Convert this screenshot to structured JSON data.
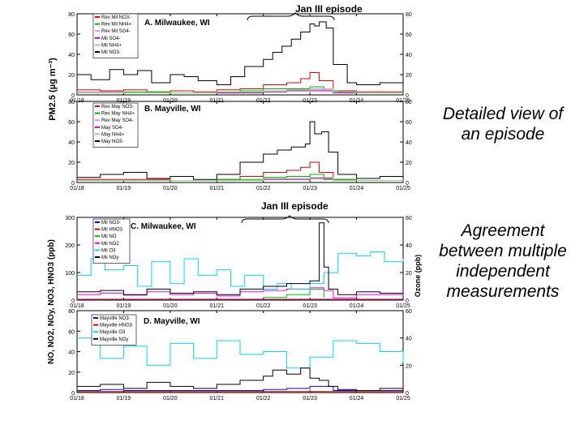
{
  "callouts": {
    "episode": [
      "Detailed view of",
      "an episode"
    ],
    "agreement": [
      "Agreement",
      "between multiple",
      "independent",
      "measurements"
    ]
  },
  "episode_labels": {
    "top": "Jan III episode",
    "bottom": "Jan III episode"
  },
  "axes": {
    "left_top": "PM2.5 (µg m⁻³)",
    "left_bottom": "NO, NO2, NOy, NO3, HNO3 (ppb)",
    "right_bottom": "Ozone (ppb)"
  },
  "chart_data": [
    {
      "id": "A",
      "type": "line",
      "title": "A. Milwaukee, WI",
      "ylim": [
        0,
        80
      ],
      "yticks": [
        0,
        20,
        40,
        60,
        80
      ],
      "xlim": [
        18,
        25
      ],
      "categories": [
        "01/18",
        "01/19",
        "01/20",
        "01/21",
        "01/22",
        "01/23",
        "01/24",
        "01/25"
      ],
      "series": [
        {
          "name": "Rev Mil NO3-",
          "color": "#e00000",
          "x": [
            18,
            18.5,
            19,
            19.5,
            20,
            20.5,
            21,
            21.5,
            22,
            22.5,
            22.8,
            23,
            23.2,
            23.5,
            24,
            24.5,
            25
          ],
          "y": [
            5,
            4,
            5,
            3,
            4,
            3,
            5,
            6,
            10,
            12,
            16,
            22,
            14,
            4,
            3,
            3,
            3
          ]
        },
        {
          "name": "Rev Mil NH4+",
          "color": "#00b000",
          "x": [
            18,
            19,
            20,
            21,
            21.5,
            22,
            22.5,
            23,
            23.3,
            23.6,
            24,
            25
          ],
          "y": [
            3,
            3,
            2,
            3,
            4,
            6,
            6,
            8,
            4,
            3,
            2,
            3
          ]
        },
        {
          "name": "Rev Mil SO4-",
          "color": "#ff80ff",
          "x": [
            18,
            19,
            20,
            21,
            22,
            22.5,
            23,
            23.5,
            24,
            25
          ],
          "y": [
            3,
            2,
            2,
            2,
            4,
            5,
            5,
            3,
            2,
            2
          ]
        },
        {
          "name": "Mil SO4-",
          "color": "#c000c0",
          "x": [
            18,
            19,
            20,
            21,
            22,
            22.5,
            23,
            23.5,
            24,
            25
          ],
          "y": [
            2,
            2,
            2,
            2,
            3,
            4,
            4,
            2,
            2,
            2
          ]
        },
        {
          "name": "Mil NH4+",
          "color": "#80e080",
          "x": [
            18,
            19,
            20,
            21,
            22,
            22.5,
            23,
            23.5,
            24,
            25
          ],
          "y": [
            2,
            2,
            2,
            3,
            4,
            5,
            6,
            3,
            2,
            2
          ]
        },
        {
          "name": "Mil NO3-",
          "color": "#000000",
          "x": [
            18,
            18.3,
            18.7,
            19,
            19.3,
            19.6,
            20,
            20.3,
            20.6,
            21,
            21.3,
            21.6,
            22,
            22.2,
            22.4,
            22.6,
            22.8,
            23,
            23.1,
            23.2,
            23.35,
            23.5,
            23.8,
            24,
            24.5,
            25
          ],
          "y": [
            20,
            15,
            25,
            20,
            24,
            12,
            20,
            18,
            14,
            10,
            18,
            28,
            35,
            42,
            48,
            55,
            62,
            70,
            68,
            72,
            66,
            30,
            12,
            10,
            12,
            16
          ]
        }
      ]
    },
    {
      "id": "B",
      "type": "line",
      "title": "B. Mayville, WI",
      "ylim": [
        0,
        80
      ],
      "yticks": [
        0,
        20,
        40,
        60,
        80
      ],
      "xlim": [
        18,
        25
      ],
      "categories": [
        "01/18",
        "01/19",
        "01/20",
        "01/21",
        "01/22",
        "01/23",
        "01/24",
        "01/25"
      ],
      "series": [
        {
          "name": "Rev May NO3-",
          "color": "#e00000",
          "x": [
            18,
            19,
            20,
            21,
            21.5,
            22,
            22.5,
            22.8,
            23,
            23.2,
            23.5,
            24,
            25
          ],
          "y": [
            3,
            3,
            2,
            3,
            6,
            10,
            12,
            15,
            20,
            10,
            3,
            2,
            3
          ]
        },
        {
          "name": "Rev May NH4+",
          "color": "#00b000",
          "x": [
            18,
            19,
            20,
            21,
            22,
            22.5,
            23,
            23.3,
            24,
            25
          ],
          "y": [
            2,
            2,
            2,
            3,
            5,
            6,
            8,
            3,
            2,
            2
          ]
        },
        {
          "name": "Rev May SO4-",
          "color": "#ff80ff",
          "x": [
            18,
            19,
            20,
            21,
            22,
            23,
            23.5,
            24,
            25
          ],
          "y": [
            2,
            2,
            2,
            2,
            4,
            5,
            2,
            2,
            2
          ]
        },
        {
          "name": "May SO4-",
          "color": "#c000c0",
          "x": [
            18,
            19,
            20,
            21,
            22,
            23,
            23.5,
            24,
            25
          ],
          "y": [
            2,
            2,
            2,
            2,
            3,
            4,
            2,
            2,
            2
          ]
        },
        {
          "name": "May NH4+",
          "color": "#80e080",
          "x": [
            18,
            19,
            20,
            21,
            22,
            23,
            23.5,
            24,
            25
          ],
          "y": [
            2,
            2,
            2,
            2,
            4,
            5,
            2,
            2,
            2
          ]
        },
        {
          "name": "May NO3-",
          "color": "#000000",
          "x": [
            18,
            18.5,
            19,
            19.5,
            20,
            20.5,
            21,
            21.5,
            22,
            22.3,
            22.6,
            22.9,
            23,
            23.1,
            23.25,
            23.4,
            23.6,
            24,
            24.5,
            25
          ],
          "y": [
            5,
            8,
            10,
            4,
            6,
            3,
            8,
            20,
            28,
            32,
            35,
            38,
            60,
            48,
            50,
            30,
            8,
            4,
            6,
            14
          ]
        }
      ]
    },
    {
      "id": "C",
      "type": "line",
      "title": "C. Milwaukee, WI",
      "ylim": [
        0,
        300
      ],
      "yticks": [
        0,
        100,
        200,
        300
      ],
      "y2lim": [
        0,
        60
      ],
      "y2ticks": [
        0,
        20,
        40,
        60
      ],
      "xlim": [
        18,
        25
      ],
      "categories": [
        "01/18",
        "01/19",
        "01/20",
        "01/21",
        "01/22",
        "01/23",
        "01/24",
        "01/25"
      ],
      "series": [
        {
          "name": "Mil NO3-",
          "color": "#0000ff",
          "x": [
            18,
            25
          ],
          "y": [
            3,
            3
          ]
        },
        {
          "name": "Mil HNO3",
          "color": "#e00000",
          "x": [
            18,
            25
          ],
          "y": [
            2,
            2
          ]
        },
        {
          "name": "Mil NO",
          "color": "#00c000",
          "x": [
            22,
            22.5,
            23,
            23.3
          ],
          "y": [
            10,
            20,
            40,
            10
          ]
        },
        {
          "name": "Mil NO2",
          "color": "#ff00ff",
          "x": [
            18,
            18.5,
            19,
            19.5,
            20,
            20.5,
            21,
            21.5,
            22,
            22.5,
            23,
            23.3,
            23.5,
            24,
            24.5,
            25
          ],
          "y": [
            20,
            25,
            18,
            30,
            20,
            25,
            15,
            30,
            35,
            40,
            45,
            35,
            8,
            20,
            20,
            15
          ]
        },
        {
          "name": "Mil O3",
          "color": "#00d8ff",
          "axis": "right",
          "x": [
            18,
            18.3,
            18.6,
            19,
            19.3,
            19.6,
            20,
            20.3,
            20.6,
            21,
            21.3,
            21.6,
            22,
            22.3,
            22.6,
            23,
            23.3,
            23.6,
            24,
            24.3,
            24.6,
            25
          ],
          "y": [
            18,
            30,
            22,
            25,
            10,
            28,
            12,
            30,
            18,
            22,
            10,
            18,
            8,
            12,
            8,
            12,
            20,
            34,
            32,
            35,
            28,
            30
          ]
        },
        {
          "name": "Mil NOy",
          "color": "#000000",
          "x": [
            18,
            18.5,
            19,
            19.5,
            20,
            20.5,
            21,
            21.5,
            22,
            22.5,
            23,
            23.2,
            23.3,
            23.4,
            23.6,
            24,
            24.5,
            25
          ],
          "y": [
            30,
            35,
            20,
            40,
            25,
            30,
            20,
            40,
            50,
            60,
            70,
            280,
            120,
            40,
            20,
            30,
            25,
            20
          ]
        }
      ]
    },
    {
      "id": "D",
      "type": "line",
      "title": "D. Mayville, WI",
      "ylim": [
        0,
        80
      ],
      "yticks": [
        0,
        20,
        40,
        60,
        80
      ],
      "y2lim": [
        0,
        60
      ],
      "y2ticks": [
        0,
        20,
        40,
        60
      ],
      "xlim": [
        18,
        25
      ],
      "categories": [
        "01/18",
        "01/19",
        "01/20",
        "01/21",
        "01/22",
        "01/23",
        "01/24",
        "01/25"
      ],
      "series": [
        {
          "name": "Mayville NO3-",
          "color": "#0000ff",
          "x": [
            18,
            18.5,
            19,
            20,
            21,
            22,
            22.5,
            23,
            23.5,
            24,
            25
          ],
          "y": [
            2,
            3,
            2,
            2,
            2,
            3,
            4,
            6,
            2,
            2,
            2
          ]
        },
        {
          "name": "Mayville HNO3",
          "color": "#e00000",
          "x": [
            18,
            25
          ],
          "y": [
            1,
            1
          ]
        },
        {
          "name": "Mayville O3",
          "color": "#00d8ff",
          "axis": "right",
          "x": [
            18,
            18.5,
            19,
            19.5,
            20,
            20.5,
            21,
            21.5,
            22,
            22.5,
            23,
            23.5,
            24,
            24.5,
            25
          ],
          "y": [
            40,
            25,
            34,
            20,
            36,
            25,
            38,
            28,
            30,
            18,
            26,
            38,
            36,
            30,
            22
          ]
        },
        {
          "name": "Mayville NOy",
          "color": "#000000",
          "x": [
            18,
            18.5,
            19,
            19.5,
            20,
            20.5,
            21,
            21.5,
            22,
            22.2,
            22.5,
            22.8,
            23,
            23.2,
            23.4,
            23.6,
            24,
            24.5,
            25
          ],
          "y": [
            6,
            8,
            4,
            10,
            6,
            4,
            8,
            12,
            16,
            22,
            18,
            24,
            14,
            12,
            6,
            3,
            2,
            4,
            4
          ]
        }
      ]
    }
  ]
}
